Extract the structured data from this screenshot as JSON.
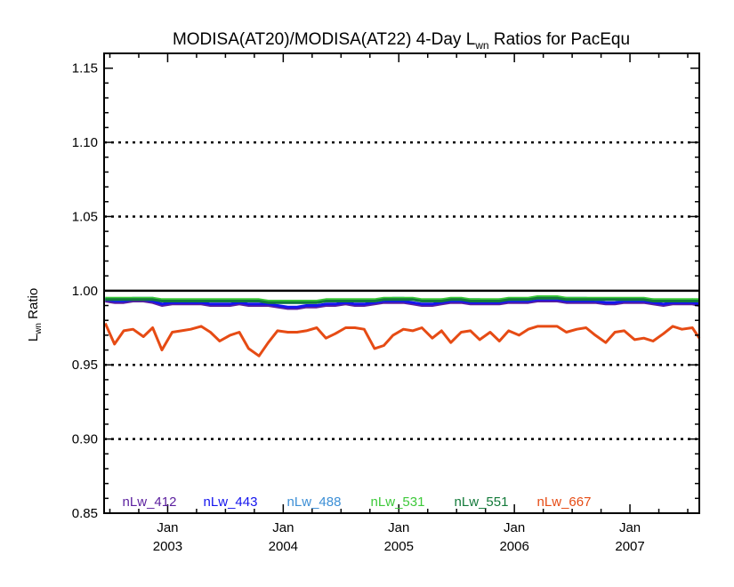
{
  "chart_data": {
    "type": "line",
    "title": {
      "prefix": "MODISA(AT20)/MODISA(AT22) 4-Day L",
      "sub": "wn",
      "suffix": " Ratios for PacEqu"
    },
    "ylabel": {
      "main": "L",
      "sub": "wn",
      "suffix": " Ratio"
    },
    "ylim": [
      0.85,
      1.16
    ],
    "xlim": [
      2002.45,
      2007.6
    ],
    "y_ticks": [
      "0.85",
      "0.90",
      "0.95",
      "1.00",
      "1.05",
      "1.10",
      "1.15"
    ],
    "y_tick_values": [
      0.85,
      0.9,
      0.95,
      1.0,
      1.05,
      1.1,
      1.15
    ],
    "y_gridlines": [
      0.9,
      0.95,
      1.05,
      1.1
    ],
    "reference_line": 1.0,
    "x_ticks": [
      {
        "month": "Jan",
        "year": "2003",
        "value": 2003.0
      },
      {
        "month": "Jan",
        "year": "2004",
        "value": 2004.0
      },
      {
        "month": "Jan",
        "year": "2005",
        "value": 2005.0
      },
      {
        "month": "Jan",
        "year": "2006",
        "value": 2006.0
      },
      {
        "month": "Jan",
        "year": "2007",
        "value": 2007.0
      }
    ],
    "x": [
      2002.46,
      2002.54,
      2002.62,
      2002.7,
      2002.79,
      2002.87,
      2002.95,
      2003.04,
      2003.12,
      2003.2,
      2003.29,
      2003.37,
      2003.45,
      2003.54,
      2003.62,
      2003.7,
      2003.79,
      2003.87,
      2003.95,
      2004.04,
      2004.12,
      2004.2,
      2004.29,
      2004.37,
      2004.45,
      2004.54,
      2004.62,
      2004.7,
      2004.79,
      2004.87,
      2004.95,
      2005.04,
      2005.12,
      2005.2,
      2005.29,
      2005.37,
      2005.45,
      2005.54,
      2005.62,
      2005.7,
      2005.79,
      2005.87,
      2005.95,
      2006.04,
      2006.12,
      2006.2,
      2006.29,
      2006.37,
      2006.45,
      2006.54,
      2006.62,
      2006.7,
      2006.79,
      2006.87,
      2006.95,
      2007.04,
      2007.12,
      2007.2,
      2007.29,
      2007.37,
      2007.45,
      2007.54,
      2007.6
    ],
    "series": [
      {
        "name": "nLw_412",
        "color": "#5b1f9e",
        "values": [
          0.993,
          0.992,
          0.992,
          0.993,
          0.993,
          0.992,
          0.99,
          0.991,
          0.991,
          0.991,
          0.991,
          0.99,
          0.99,
          0.99,
          0.991,
          0.99,
          0.99,
          0.99,
          0.989,
          0.988,
          0.988,
          0.989,
          0.989,
          0.99,
          0.99,
          0.991,
          0.99,
          0.99,
          0.991,
          0.992,
          0.992,
          0.992,
          0.991,
          0.99,
          0.99,
          0.991,
          0.992,
          0.992,
          0.991,
          0.991,
          0.991,
          0.991,
          0.992,
          0.992,
          0.992,
          0.993,
          0.993,
          0.993,
          0.992,
          0.992,
          0.992,
          0.992,
          0.991,
          0.991,
          0.992,
          0.992,
          0.992,
          0.991,
          0.99,
          0.991,
          0.991,
          0.991,
          0.99
        ]
      },
      {
        "name": "nLw_443",
        "color": "#1414ee",
        "values": [
          0.994,
          0.993,
          0.993,
          0.994,
          0.994,
          0.993,
          0.991,
          0.992,
          0.992,
          0.992,
          0.992,
          0.991,
          0.991,
          0.991,
          0.992,
          0.991,
          0.991,
          0.991,
          0.99,
          0.989,
          0.989,
          0.99,
          0.99,
          0.991,
          0.991,
          0.992,
          0.991,
          0.991,
          0.992,
          0.993,
          0.993,
          0.993,
          0.992,
          0.991,
          0.991,
          0.992,
          0.993,
          0.993,
          0.992,
          0.992,
          0.992,
          0.992,
          0.993,
          0.993,
          0.993,
          0.994,
          0.994,
          0.994,
          0.993,
          0.993,
          0.993,
          0.993,
          0.992,
          0.992,
          0.993,
          0.993,
          0.993,
          0.992,
          0.991,
          0.992,
          0.992,
          0.992,
          0.991
        ]
      },
      {
        "name": "nLw_488",
        "color": "#3c8fd6",
        "values": [
          0.995,
          0.994,
          0.994,
          0.995,
          0.995,
          0.995,
          0.993,
          0.993,
          0.993,
          0.993,
          0.993,
          0.993,
          0.993,
          0.993,
          0.993,
          0.993,
          0.993,
          0.993,
          0.992,
          0.992,
          0.992,
          0.992,
          0.992,
          0.993,
          0.993,
          0.993,
          0.993,
          0.993,
          0.993,
          0.994,
          0.995,
          0.995,
          0.994,
          0.993,
          0.993,
          0.994,
          0.994,
          0.994,
          0.994,
          0.994,
          0.993,
          0.994,
          0.994,
          0.994,
          0.994,
          0.995,
          0.995,
          0.995,
          0.995,
          0.995,
          0.995,
          0.994,
          0.994,
          0.994,
          0.994,
          0.994,
          0.994,
          0.994,
          0.993,
          0.993,
          0.993,
          0.994,
          0.993
        ]
      },
      {
        "name": "nLw_531",
        "color": "#3ec93a",
        "values": [
          0.995,
          0.995,
          0.995,
          0.995,
          0.995,
          0.995,
          0.994,
          0.994,
          0.994,
          0.994,
          0.994,
          0.994,
          0.994,
          0.994,
          0.994,
          0.994,
          0.994,
          0.993,
          0.993,
          0.993,
          0.993,
          0.993,
          0.993,
          0.994,
          0.994,
          0.994,
          0.994,
          0.994,
          0.994,
          0.995,
          0.995,
          0.995,
          0.995,
          0.994,
          0.994,
          0.994,
          0.995,
          0.995,
          0.994,
          0.994,
          0.994,
          0.994,
          0.995,
          0.995,
          0.995,
          0.996,
          0.996,
          0.996,
          0.995,
          0.995,
          0.995,
          0.995,
          0.995,
          0.995,
          0.995,
          0.995,
          0.995,
          0.994,
          0.994,
          0.994,
          0.994,
          0.994,
          0.994
        ]
      },
      {
        "name": "nLw_551",
        "color": "#137a3a",
        "values": [
          0.994,
          0.994,
          0.994,
          0.994,
          0.994,
          0.994,
          0.993,
          0.993,
          0.993,
          0.993,
          0.993,
          0.993,
          0.993,
          0.993,
          0.993,
          0.993,
          0.993,
          0.992,
          0.992,
          0.992,
          0.992,
          0.992,
          0.992,
          0.993,
          0.993,
          0.993,
          0.993,
          0.993,
          0.993,
          0.994,
          0.994,
          0.994,
          0.994,
          0.993,
          0.993,
          0.993,
          0.994,
          0.994,
          0.993,
          0.993,
          0.993,
          0.993,
          0.994,
          0.994,
          0.994,
          0.995,
          0.995,
          0.995,
          0.994,
          0.994,
          0.994,
          0.994,
          0.994,
          0.994,
          0.994,
          0.994,
          0.994,
          0.993,
          0.993,
          0.993,
          0.993,
          0.993,
          0.993
        ]
      },
      {
        "name": "nLw_667",
        "color": "#e64b14",
        "values": [
          0.978,
          0.964,
          0.973,
          0.974,
          0.969,
          0.975,
          0.96,
          0.972,
          0.973,
          0.974,
          0.976,
          0.972,
          0.966,
          0.97,
          0.972,
          0.961,
          0.956,
          0.965,
          0.973,
          0.972,
          0.972,
          0.973,
          0.975,
          0.968,
          0.971,
          0.975,
          0.975,
          0.974,
          0.961,
          0.963,
          0.97,
          0.974,
          0.973,
          0.975,
          0.968,
          0.973,
          0.965,
          0.972,
          0.973,
          0.967,
          0.972,
          0.966,
          0.973,
          0.97,
          0.974,
          0.976,
          0.976,
          0.976,
          0.972,
          0.974,
          0.975,
          0.97,
          0.965,
          0.972,
          0.973,
          0.967,
          0.968,
          0.966,
          0.971,
          0.976,
          0.974,
          0.975,
          0.968
        ]
      }
    ],
    "grid": "horizontal dotted",
    "legend_placement": "bottom"
  }
}
